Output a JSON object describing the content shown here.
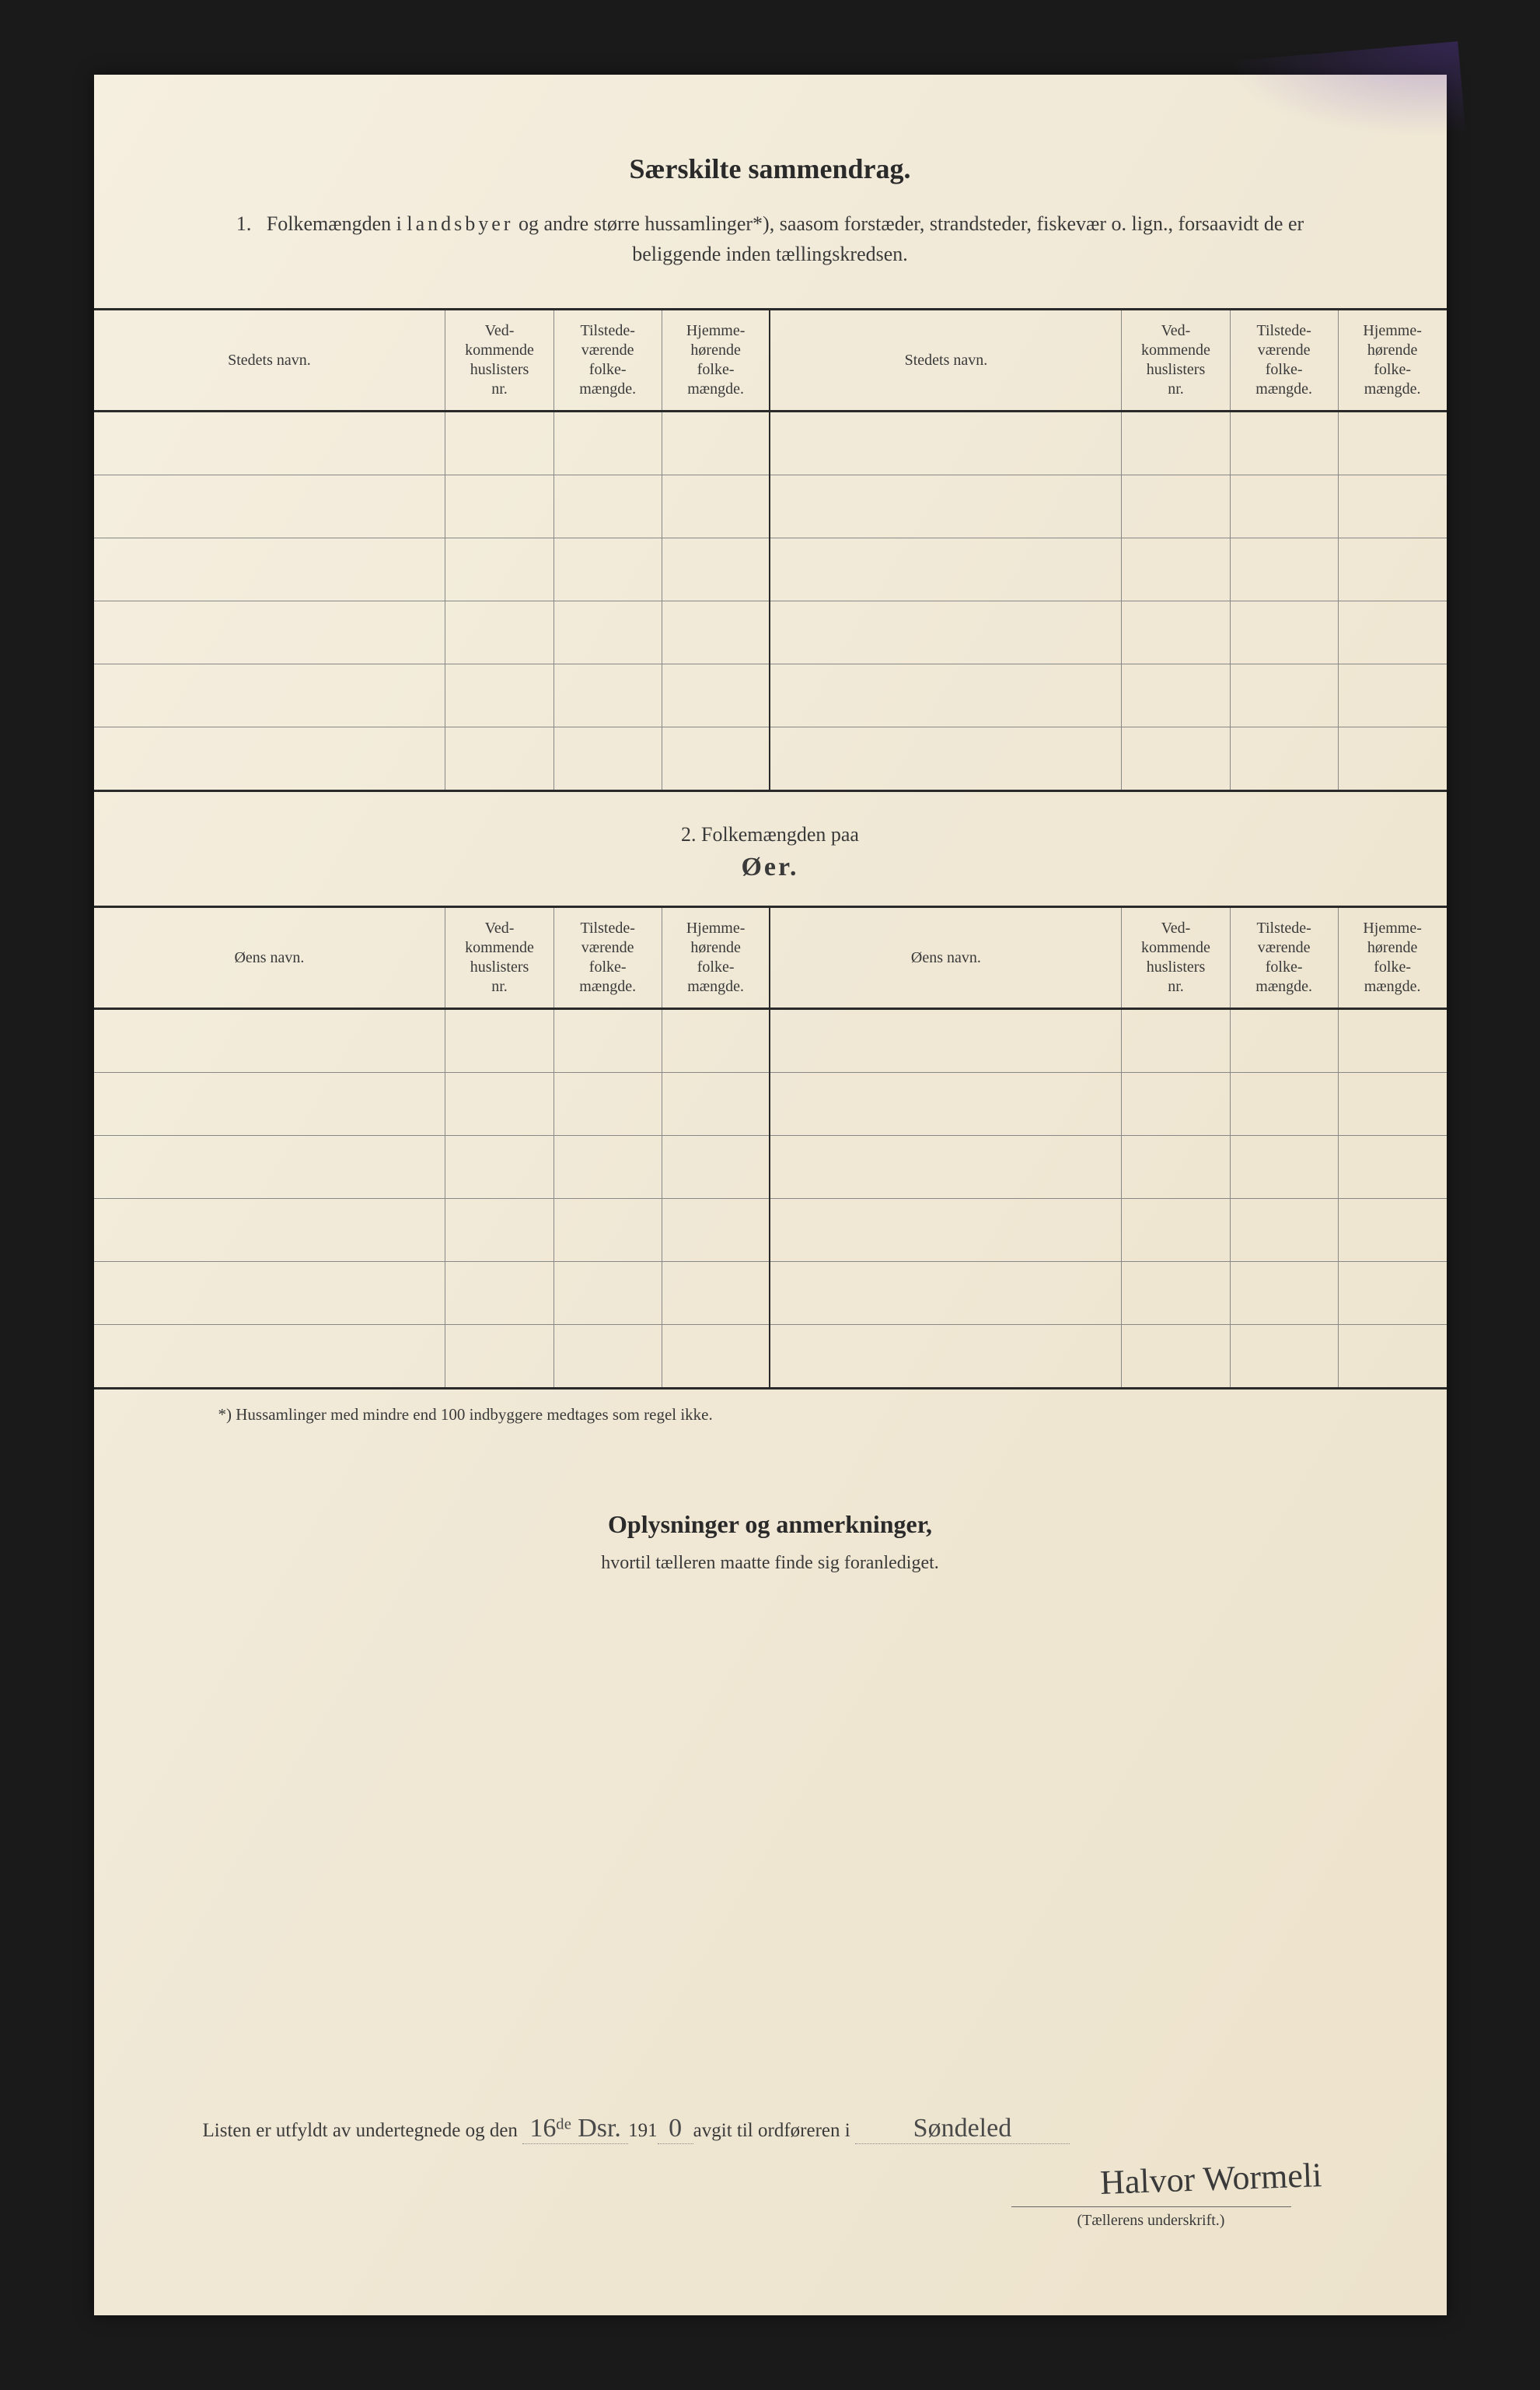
{
  "title": "Særskilte sammendrag.",
  "intro_num": "1.",
  "intro_prefix": "Folkemængden i ",
  "intro_spaced": "landsbyer",
  "intro_rest": " og andre større hussamlinger*), saasom forstæder, strandsteder, fiskevær o. lign., forsaavidt de er beliggende inden tællingskredsen.",
  "table1": {
    "columns": {
      "c1": "Stedets navn.",
      "c2": "Ved-\nkommende\nhuslisters\nnr.",
      "c3": "Tilstede-\nværende\nfolke-\nmængde.",
      "c4": "Hjemme-\nhørende\nfolke-\nmængde.",
      "c5": "Stedets navn.",
      "c6": "Ved-\nkommende\nhuslisters\nnr.",
      "c7": "Tilstede-\nværende\nfolke-\nmængde.",
      "c8": "Hjemme-\nhørende\nfolke-\nmængde."
    },
    "row_count": 6
  },
  "section2_line1": "2.   Folkemængden paa",
  "section2_line2": "Øer.",
  "table2": {
    "columns": {
      "c1": "Øens navn.",
      "c2": "Ved-\nkommende\nhuslisters\nnr.",
      "c3": "Tilstede-\nværende\nfolke-\nmængde.",
      "c4": "Hjemme-\nhørende\nfolke-\nmængde.",
      "c5": "Øens navn.",
      "c6": "Ved-\nkommende\nhuslisters\nnr.",
      "c7": "Tilstede-\nværende\nfolke-\nmængde.",
      "c8": "Hjemme-\nhørende\nfolke-\nmængde."
    },
    "row_count": 6
  },
  "footnote": "*) Hussamlinger med mindre end 100 indbyggere medtages som regel ikke.",
  "notes_title": "Oplysninger og anmerkninger,",
  "notes_sub": "hvortil tælleren maatte finde sig foranlediget.",
  "sig": {
    "prefix": "Listen er utfyldt av undertegnede og den",
    "date_hand": "16ᵈᵉ Dsr.",
    "mid1": " 191",
    "year_hand": "0",
    "mid2": " avgit til ordføreren i",
    "place_hand": "Søndeled"
  },
  "signature_name": "Halvor Wormeli",
  "sig_caption": "(Tællerens underskrift.)",
  "colors": {
    "text": "#2a2a2a",
    "rule": "#888888",
    "heavy_rule": "#2a2a2a",
    "page_bg": "#f0e8d5",
    "backdrop": "#1a1a1a"
  }
}
